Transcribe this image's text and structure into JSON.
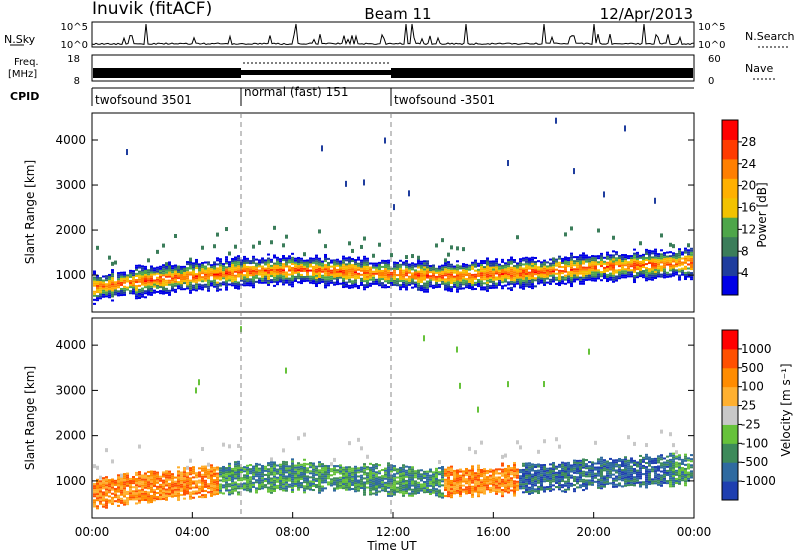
{
  "header": {
    "title_left": "Inuvik (fitACF)",
    "title_center": "Beam 11",
    "title_right": "12/Apr/2013"
  },
  "noise_panel": {
    "left_label": "N.Sky",
    "right_label": "N.Search",
    "left_ticks": [
      "10^5",
      "10^0"
    ],
    "right_ticks": [
      "10^5",
      "10^0"
    ]
  },
  "freq_panel": {
    "left_label_top": "Freq.",
    "left_label_bottom": "[MHz]",
    "right_label": "Nave",
    "left_ticks": [
      "18",
      "8"
    ],
    "right_ticks": [
      "60",
      "0"
    ]
  },
  "cpid_panel": {
    "label": "CPID",
    "segments": [
      {
        "start_h": 0,
        "end_h": 6,
        "text": "twofsound 3501"
      },
      {
        "start_h": 6,
        "end_h": 12,
        "text": "normal (fast) 151"
      },
      {
        "start_h": 12,
        "end_h": 24,
        "text": "twofsound -3501"
      }
    ]
  },
  "chart_data": [
    {
      "type": "heatmap",
      "name": "power",
      "ylabel": "Slant Range [km]",
      "xlabel": "",
      "y_ticks": [
        "1000",
        "2000",
        "3000",
        "4000"
      ],
      "ylim_km": [
        180,
        4600
      ],
      "colorbar": {
        "label": "Power [dB]",
        "ticks": [
          "28",
          "24",
          "20",
          "16",
          "12",
          "8",
          "4"
        ],
        "colors": [
          "#0000e6",
          "#1f3d9e",
          "#3b7d5a",
          "#4ea64a",
          "#f2c200",
          "#ffb000",
          "#ff7f00",
          "#ff3b00",
          "#ff0000"
        ]
      },
      "band_center_km": [
        [
          0,
          700
        ],
        [
          2,
          850
        ],
        [
          4,
          950
        ],
        [
          6,
          1050
        ],
        [
          8,
          1100
        ],
        [
          10,
          1050
        ],
        [
          12,
          1000
        ],
        [
          14,
          950
        ],
        [
          16,
          1000
        ],
        [
          18,
          1050
        ],
        [
          20,
          1150
        ],
        [
          22,
          1200
        ],
        [
          24,
          1250
        ]
      ]
    },
    {
      "type": "heatmap",
      "name": "velocity",
      "ylabel": "Slant Range [km]",
      "xlabel": "Time UT",
      "y_ticks": [
        "1000",
        "2000",
        "3000",
        "4000"
      ],
      "ylim_km": [
        180,
        4600
      ],
      "colorbar": {
        "label": "Velocity [m s⁻¹]",
        "ticks": [
          "1000",
          "500",
          "100",
          "25",
          "-25",
          "-100",
          "-500",
          "-1000"
        ],
        "colors": [
          "#1f3fb0",
          "#2f6aa0",
          "#3d8a5a",
          "#66c23a",
          "#c8c8c8",
          "#ffb030",
          "#ff8c00",
          "#ff5000",
          "#ff0000"
        ]
      }
    }
  ],
  "x_axis": {
    "label": "Time UT",
    "ticks": [
      "00:00",
      "04:00",
      "08:00",
      "12:00",
      "16:00",
      "20:00",
      "00:00"
    ]
  }
}
